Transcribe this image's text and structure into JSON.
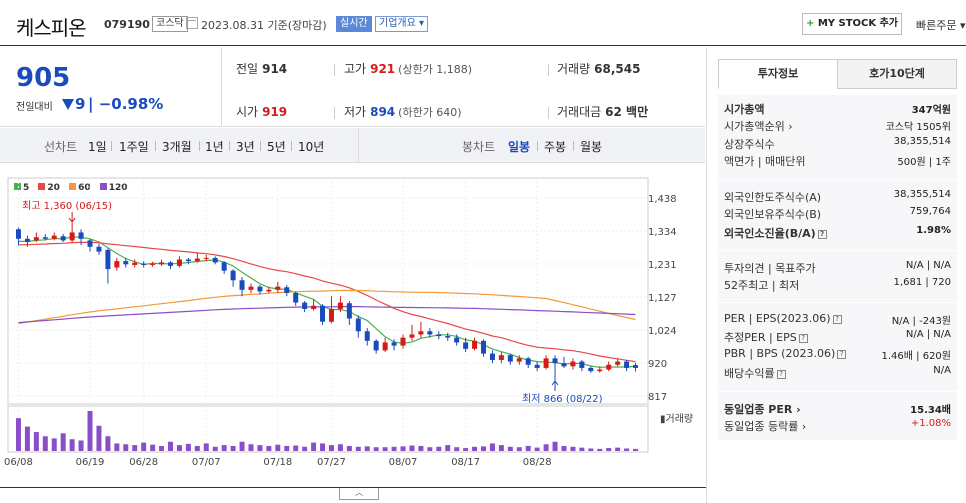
{
  "header": {
    "name": "케스피온",
    "code": "079190",
    "market_badge": "코스닥",
    "date_text": "2023.08.31  기준(장마감)",
    "realtime_badge": "실시간",
    "overview_badge": "기업개요 ▾",
    "mystock_label": "MY STOCK 추가",
    "mystock_plus": "+",
    "quick_order": "빠른주문 ▾"
  },
  "price": {
    "current": "905",
    "change_label": "전일대비",
    "change_value": "9",
    "change_pct": "| −0.98%"
  },
  "stats": {
    "prev_label": "전일",
    "prev": "914",
    "high_label": "고가",
    "high": "921",
    "high_limit": "(상한가 1,188)",
    "volume_label": "거래량",
    "volume": "68,545",
    "open_label": "시가",
    "open": "919",
    "low_label": "저가",
    "low": "894",
    "low_limit": "(하한가 640)",
    "amount_label": "거래대금",
    "amount": "62 백만"
  },
  "periodbar": {
    "line_label": "선차트",
    "line_periods": [
      "1일",
      "1주일",
      "3개월",
      "1년",
      "3년",
      "5년",
      "10년"
    ],
    "candle_label": "봉차트",
    "candle_periods": [
      "일봉",
      "주봉",
      "월봉"
    ],
    "active_candle": "일봉"
  },
  "colors": {
    "up": "#d61a1a",
    "down": "#1a4bbd",
    "ma5": "#4caf50",
    "ma20": "#e94848",
    "ma60": "#f29a3a",
    "ma120": "#8a4fc7"
  },
  "chart_data": {
    "type": "candlestick",
    "legend": [
      {
        "name": "5",
        "color": "#4caf50"
      },
      {
        "name": "20",
        "color": "#e94848"
      },
      {
        "name": "60",
        "color": "#f29a3a"
      },
      {
        "name": "120",
        "color": "#8a4fc7"
      }
    ],
    "y_ticks": [
      "1,438",
      "1,334",
      "1,231",
      "1,127",
      "1,024",
      "920",
      "817"
    ],
    "ylim": [
      817,
      1438
    ],
    "x_ticks": [
      "06/08",
      "06/19",
      "06/28",
      "07/07",
      "07/18",
      "07/27",
      "08/07",
      "08/17",
      "08/28"
    ],
    "high_annotation": "최고 1,360 (06/15)",
    "low_annotation": "최저 866 (08/22)",
    "volume_label": "거래량",
    "candles": [
      [
        1340,
        1310,
        1345,
        1290
      ],
      [
        1310,
        1300,
        1320,
        1285
      ],
      [
        1305,
        1315,
        1330,
        1300
      ],
      [
        1315,
        1310,
        1325,
        1305
      ],
      [
        1310,
        1320,
        1330,
        1305
      ],
      [
        1318,
        1305,
        1325,
        1300
      ],
      [
        1305,
        1330,
        1360,
        1300
      ],
      [
        1330,
        1310,
        1340,
        1290
      ],
      [
        1305,
        1285,
        1310,
        1270
      ],
      [
        1285,
        1270,
        1295,
        1260
      ],
      [
        1275,
        1215,
        1280,
        1170
      ],
      [
        1220,
        1240,
        1250,
        1210
      ],
      [
        1240,
        1230,
        1250,
        1220
      ],
      [
        1228,
        1235,
        1245,
        1220
      ],
      [
        1232,
        1228,
        1240,
        1220
      ],
      [
        1228,
        1232,
        1238,
        1222
      ],
      [
        1230,
        1236,
        1245,
        1225
      ],
      [
        1236,
        1225,
        1240,
        1215
      ],
      [
        1225,
        1245,
        1255,
        1220
      ],
      [
        1245,
        1240,
        1250,
        1230
      ],
      [
        1240,
        1248,
        1265,
        1235
      ],
      [
        1248,
        1250,
        1260,
        1240
      ],
      [
        1250,
        1236,
        1255,
        1230
      ],
      [
        1236,
        1210,
        1240,
        1200
      ],
      [
        1210,
        1180,
        1215,
        1160
      ],
      [
        1180,
        1150,
        1190,
        1130
      ],
      [
        1150,
        1160,
        1170,
        1140
      ],
      [
        1160,
        1145,
        1165,
        1135
      ],
      [
        1145,
        1150,
        1160,
        1140
      ],
      [
        1150,
        1160,
        1175,
        1140
      ],
      [
        1158,
        1140,
        1165,
        1130
      ],
      [
        1140,
        1110,
        1145,
        1100
      ],
      [
        1110,
        1090,
        1115,
        1080
      ],
      [
        1090,
        1100,
        1120,
        1085
      ],
      [
        1100,
        1050,
        1105,
        1040
      ],
      [
        1050,
        1090,
        1130,
        1045
      ],
      [
        1090,
        1110,
        1130,
        1080
      ],
      [
        1108,
        1060,
        1115,
        1040
      ],
      [
        1060,
        1020,
        1070,
        1000
      ],
      [
        1020,
        990,
        1030,
        975
      ],
      [
        990,
        960,
        995,
        950
      ],
      [
        960,
        985,
        1000,
        955
      ],
      [
        985,
        975,
        995,
        960
      ],
      [
        975,
        1000,
        1010,
        965
      ],
      [
        1000,
        1010,
        1040,
        990
      ],
      [
        1010,
        1020,
        1050,
        1000
      ],
      [
        1020,
        1010,
        1030,
        1000
      ],
      [
        1010,
        1005,
        1020,
        995
      ],
      [
        1005,
        1000,
        1015,
        990
      ],
      [
        1000,
        985,
        1010,
        975
      ],
      [
        985,
        965,
        1000,
        955
      ],
      [
        965,
        990,
        1000,
        960
      ],
      [
        990,
        950,
        995,
        940
      ],
      [
        950,
        930,
        960,
        920
      ],
      [
        930,
        945,
        955,
        920
      ],
      [
        945,
        925,
        950,
        915
      ],
      [
        925,
        935,
        945,
        915
      ],
      [
        935,
        915,
        940,
        905
      ],
      [
        915,
        905,
        925,
        895
      ],
      [
        905,
        935,
        945,
        900
      ],
      [
        935,
        920,
        945,
        866
      ],
      [
        920,
        910,
        940,
        905
      ],
      [
        910,
        925,
        935,
        900
      ],
      [
        925,
        905,
        930,
        895
      ],
      [
        905,
        895,
        910,
        890
      ],
      [
        895,
        900,
        910,
        890
      ],
      [
        900,
        915,
        925,
        895
      ],
      [
        915,
        925,
        935,
        910
      ],
      [
        925,
        905,
        930,
        895
      ],
      [
        914,
        905,
        921,
        894
      ]
    ],
    "volumes": [
      78,
      58,
      45,
      35,
      30,
      42,
      28,
      25,
      95,
      60,
      35,
      18,
      16,
      14,
      20,
      15,
      12,
      22,
      14,
      17,
      12,
      18,
      10,
      14,
      12,
      22,
      16,
      14,
      12,
      15,
      12,
      13,
      10,
      20,
      18,
      14,
      16,
      12,
      10,
      11,
      9,
      9,
      10,
      11,
      13,
      12,
      9,
      10,
      14,
      9,
      7,
      10,
      11,
      18,
      14,
      10,
      9,
      12,
      8,
      16,
      22,
      12,
      10,
      8,
      6,
      5,
      7,
      8,
      6,
      5
    ]
  },
  "info": {
    "tab_active": "투자정보",
    "tab_2": "호가10단계",
    "rows": [
      {
        "label": "시가총액",
        "value": "347억원",
        "bold": true
      },
      {
        "label": "시가총액순위 ›",
        "value": "코스닥 1505위"
      },
      {
        "label": "상장주식수",
        "value": "38,355,514"
      },
      {
        "label": "액면가 | 매매단위",
        "value": "500원 | 1주"
      },
      {
        "label": "외국인한도주식수(A)",
        "value": "38,355,514"
      },
      {
        "label": "외국인보유주식수(B)",
        "value": "759,764"
      },
      {
        "label": "외국인소진율(B/A)",
        "value": "1.98%",
        "bold": true,
        "q": true
      },
      {
        "label": "투자의견 | 목표주가",
        "value": "N/A | N/A"
      },
      {
        "label": "52주최고 | 최저",
        "value": "1,681 | 720"
      },
      {
        "label": "PER | EPS(2023.06)",
        "value": "N/A | -243원",
        "q": true
      },
      {
        "label": "추정PER | EPS",
        "value": "N/A | N/A",
        "q": true
      },
      {
        "label": "PBR | BPS (2023.06)",
        "value": "1.46배 | 620원",
        "q": true
      },
      {
        "label": "배당수익률",
        "value": "N/A",
        "q": true
      },
      {
        "label": "동일업종 PER ›",
        "value": "15.34배",
        "bold": true
      },
      {
        "label": "동일업종 등락률 ›",
        "value": "+1.08%",
        "red": true
      }
    ]
  },
  "collapse_label": "︿"
}
